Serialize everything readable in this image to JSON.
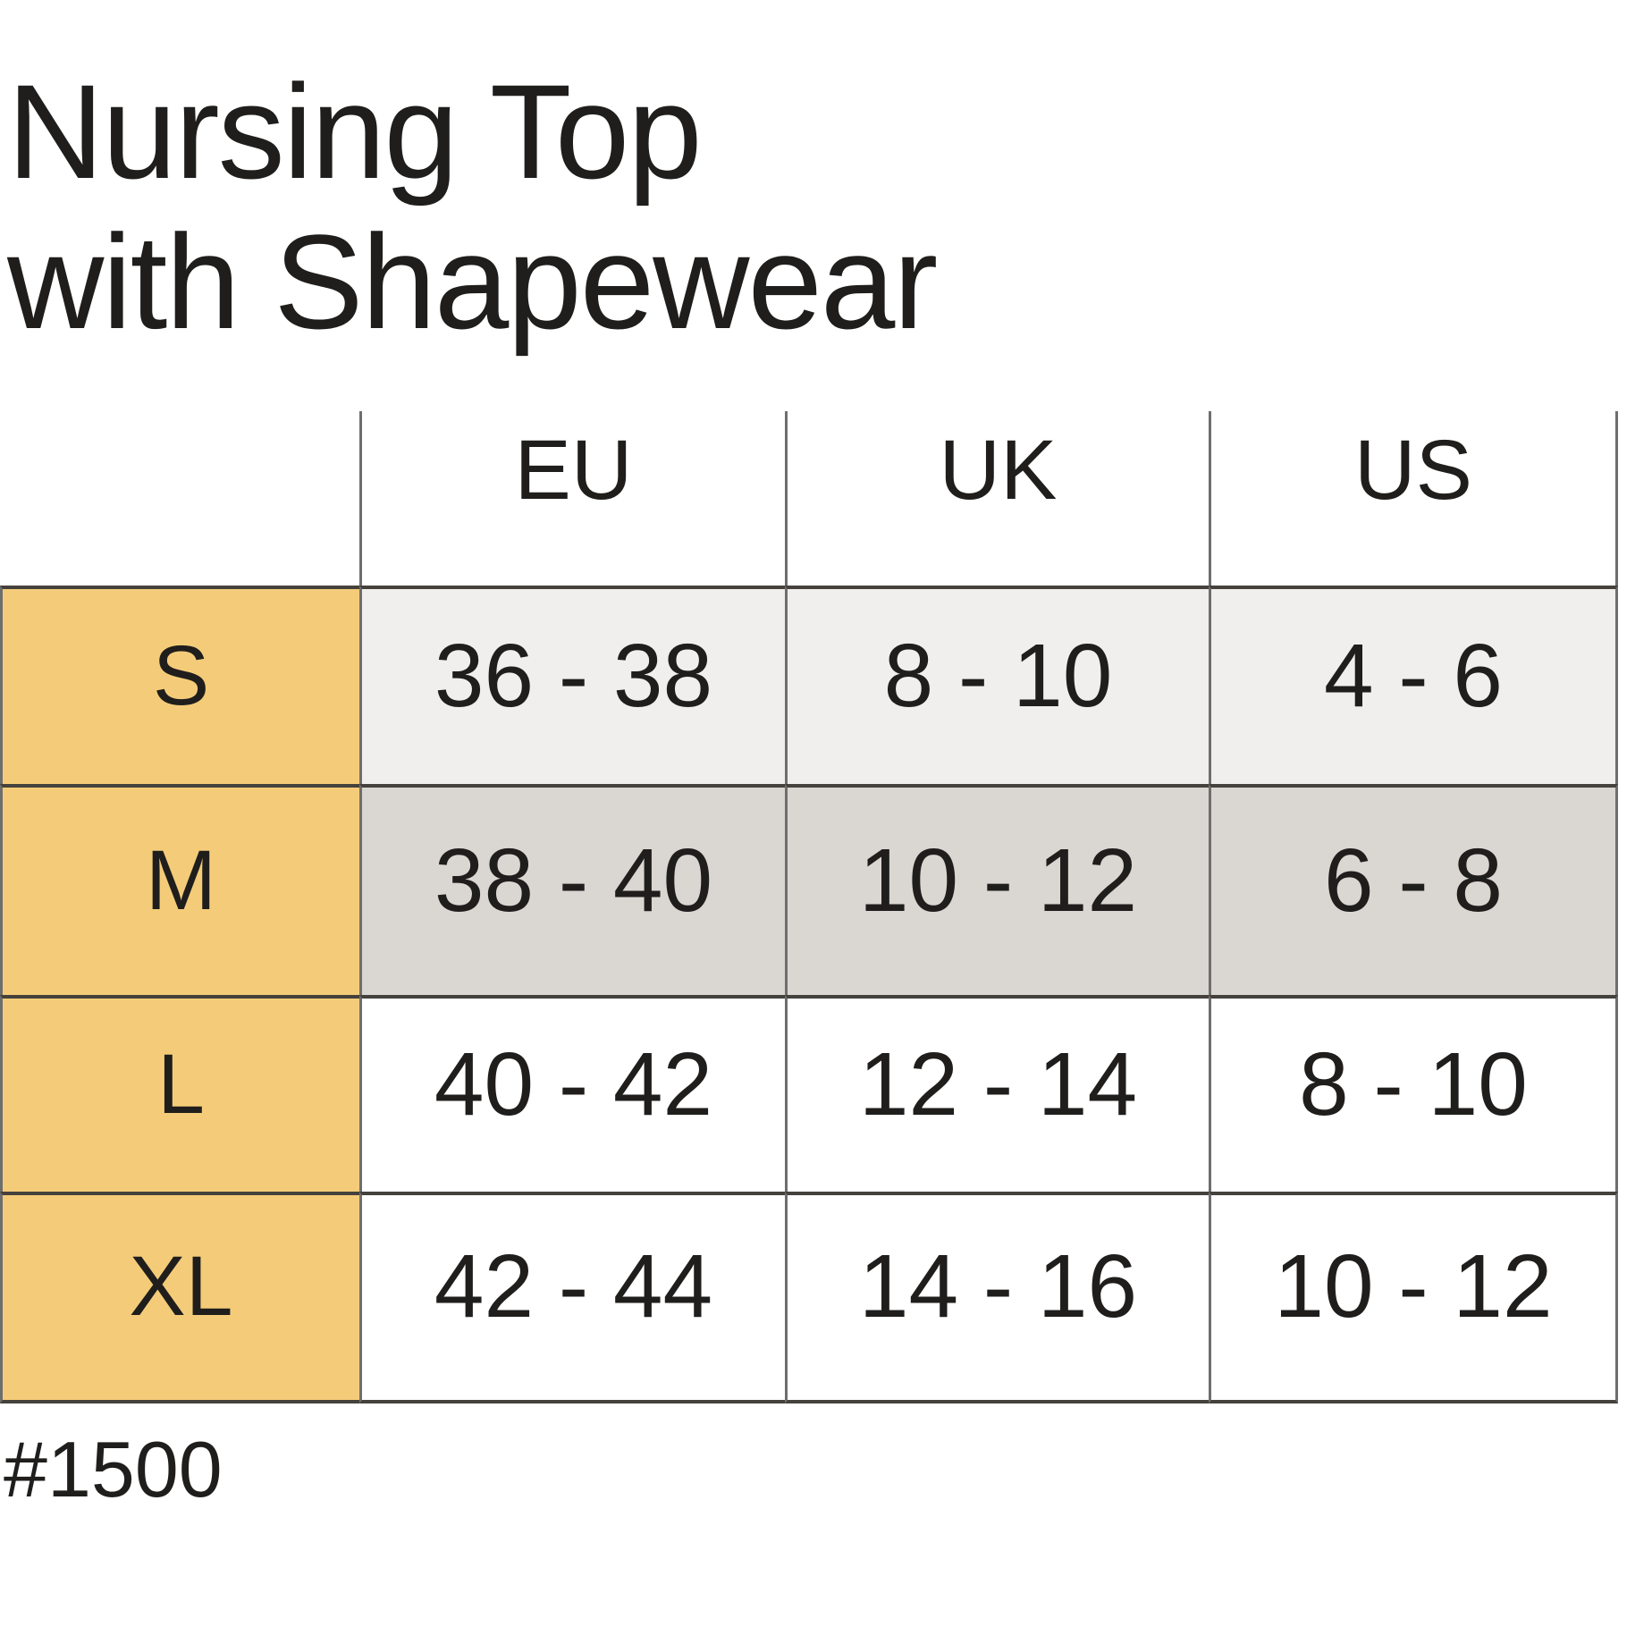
{
  "title": {
    "line1": "Nursing Top",
    "line2": "with Shapewear"
  },
  "chart_data": {
    "type": "table",
    "title": "Nursing Top with Shapewear",
    "columns": [
      "EU",
      "UK",
      "US"
    ],
    "rows": [
      {
        "label": "S",
        "eu": "36 - 38",
        "uk": "8 - 10",
        "us": "4 - 6"
      },
      {
        "label": "M",
        "eu": "38 - 40",
        "uk": "10 - 12",
        "us": "6 - 8"
      },
      {
        "label": "L",
        "eu": "40 - 42",
        "uk": "12 - 14",
        "us": "8 - 10"
      },
      {
        "label": "XL",
        "eu": "42 - 44",
        "uk": "14 - 16",
        "us": "10 - 12"
      }
    ],
    "footnote": "#1500"
  },
  "colors": {
    "accent_yellow": "#F4CC79",
    "row_s_gray": "#F0EFED",
    "row_m_gray": "#DAD6D2",
    "border_dark": "#45413C",
    "border_gray": "#6E6E6E",
    "text_color": "#1F1E1C"
  }
}
